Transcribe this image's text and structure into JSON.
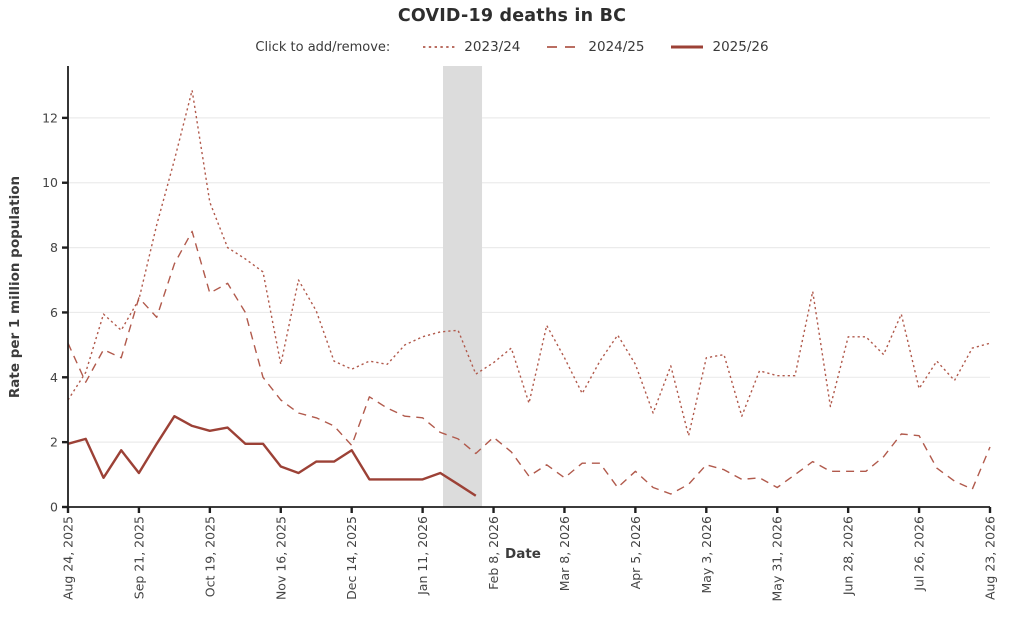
{
  "header": {
    "title": "COVID-19 deaths in BC"
  },
  "legend": {
    "instruction": "Click to add/remove:",
    "items": [
      {
        "label": "2023/24",
        "style": "dotted"
      },
      {
        "label": "2024/25",
        "style": "dashed"
      },
      {
        "label": "2025/26",
        "style": "solid"
      }
    ]
  },
  "axes": {
    "y_title": "Rate per 1 million population",
    "x_title": "Date"
  },
  "colors": {
    "series_light": "#b15a4c",
    "series_dark": "#9c4136",
    "grid": "#ebebeb",
    "axis": "#1f1f1f",
    "band": "#dcdcdc",
    "tick_text": "#444444"
  },
  "chart_data": {
    "type": "line",
    "title": "COVID-19 deaths in BC",
    "xlabel": "Date",
    "ylabel": "Rate per 1 million population",
    "ylim": [
      0,
      13.6
    ],
    "y_ticks": [
      0,
      2,
      4,
      6,
      8,
      10,
      12
    ],
    "grid": true,
    "legend_position": "top",
    "x": [
      "Aug 24, 2025",
      "Aug 31, 2025",
      "Sep 7, 2025",
      "Sep 14, 2025",
      "Sep 21, 2025",
      "Sep 28, 2025",
      "Oct 5, 2025",
      "Oct 12, 2025",
      "Oct 19, 2025",
      "Oct 26, 2025",
      "Nov 2, 2025",
      "Nov 9, 2025",
      "Nov 16, 2025",
      "Nov 23, 2025",
      "Nov 30, 2025",
      "Dec 7, 2025",
      "Dec 14, 2025",
      "Dec 21, 2025",
      "Dec 28, 2025",
      "Jan 4, 2026",
      "Jan 11, 2026",
      "Jan 18, 2026",
      "Jan 25, 2026",
      "Feb 1, 2026",
      "Feb 8, 2026",
      "Feb 15, 2026",
      "Feb 22, 2026",
      "Mar 1, 2026",
      "Mar 8, 2026",
      "Mar 15, 2026",
      "Mar 22, 2026",
      "Mar 29, 2026",
      "Apr 5, 2026",
      "Apr 12, 2026",
      "Apr 19, 2026",
      "Apr 26, 2026",
      "May 3, 2026",
      "May 10, 2026",
      "May 17, 2026",
      "May 24, 2026",
      "May 31, 2026",
      "Jun 7, 2026",
      "Jun 14, 2026",
      "Jun 21, 2026",
      "Jun 28, 2026",
      "Jul 5, 2026",
      "Jul 12, 2026",
      "Jul 19, 2026",
      "Jul 26, 2026",
      "Aug 2, 2026",
      "Aug 9, 2026",
      "Aug 16, 2026",
      "Aug 23, 2026"
    ],
    "x_tick_every": 4,
    "x_tick_labels": [
      "Aug 24, 2025",
      "Sep 21, 2025",
      "Oct 19, 2025",
      "Nov 16, 2025",
      "Dec 14, 2025",
      "Jan 11, 2026",
      "Feb 8, 2026",
      "Mar 8, 2026",
      "Apr 5, 2026",
      "May 3, 2026",
      "May 31, 2026",
      "Jun 28, 2026",
      "Jul 26, 2026",
      "Aug 23, 2026"
    ],
    "highlight_band": {
      "from_week": 21.15,
      "to_week": 23.35
    },
    "series": [
      {
        "name": "2023/24",
        "style": "dotted",
        "color": "#b15a4c",
        "values": [
          3.3,
          4.15,
          5.95,
          5.45,
          6.4,
          8.7,
          10.7,
          12.85,
          9.4,
          8.0,
          7.65,
          7.25,
          4.4,
          7.0,
          6.05,
          4.5,
          4.25,
          4.5,
          4.4,
          5.0,
          5.25,
          5.4,
          5.45,
          4.1,
          4.45,
          4.9,
          3.2,
          5.6,
          4.6,
          3.5,
          4.5,
          5.3,
          4.4,
          2.9,
          4.35,
          2.2,
          4.6,
          4.7,
          2.8,
          4.2,
          4.05,
          4.05,
          6.65,
          3.1,
          5.25,
          5.25,
          4.7,
          5.95,
          3.65,
          4.5,
          3.9,
          4.9,
          5.05
        ]
      },
      {
        "name": "2024/25",
        "style": "dashed",
        "color": "#b15a4c",
        "values": [
          5.05,
          3.85,
          4.85,
          4.6,
          6.45,
          5.85,
          7.5,
          8.5,
          6.6,
          6.9,
          6.0,
          4.0,
          3.3,
          2.9,
          2.75,
          2.5,
          1.9,
          3.4,
          3.05,
          2.8,
          2.75,
          2.3,
          2.1,
          1.65,
          2.15,
          1.7,
          0.95,
          1.3,
          0.9,
          1.35,
          1.35,
          0.6,
          1.1,
          0.6,
          0.4,
          0.7,
          1.3,
          1.15,
          0.85,
          0.9,
          0.6,
          1.0,
          1.4,
          1.1,
          1.1,
          1.1,
          1.55,
          2.25,
          2.2,
          1.2,
          0.8,
          0.55,
          1.85
        ]
      },
      {
        "name": "2025/26",
        "style": "solid",
        "color": "#9c4136",
        "values": [
          1.95,
          2.1,
          0.9,
          1.75,
          1.05,
          1.95,
          2.8,
          2.5,
          2.35,
          2.45,
          1.95,
          1.95,
          1.25,
          1.05,
          1.4,
          1.4,
          1.75,
          0.85,
          0.85,
          0.85,
          0.85,
          1.05,
          0.7,
          0.35
        ]
      }
    ]
  }
}
